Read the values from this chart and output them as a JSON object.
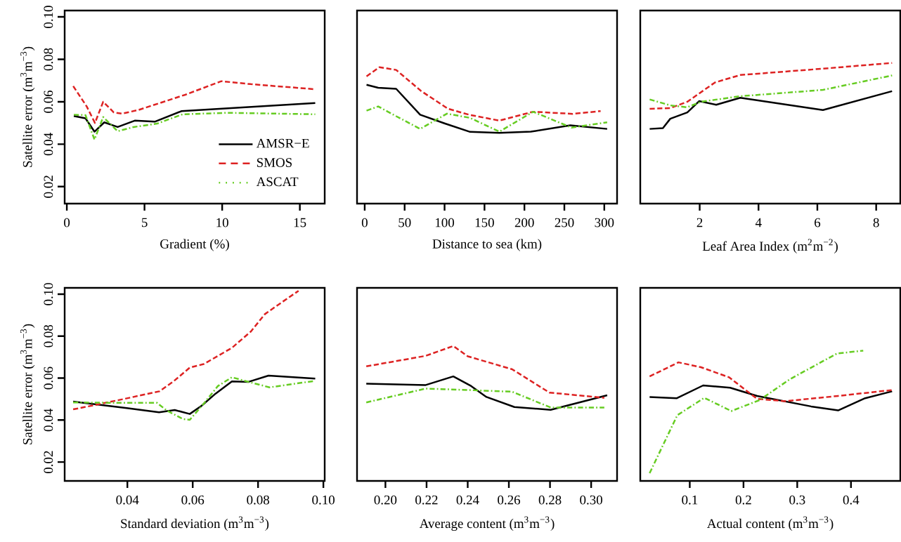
{
  "chart_data": [
    {
      "type": "line",
      "xlabel": "Gradient (%)",
      "ylabel": "Satellite error (m$^{3}$m$^{−3}$)",
      "xlim": [
        -0.14,
        16.6
      ],
      "ylim": [
        0.012,
        0.103
      ],
      "xticks": [
        0,
        5,
        10,
        15
      ],
      "yticks": [
        0.02,
        0.04,
        0.06,
        0.08,
        {
          "value": 0.1,
          "label": "0.10"
        }
      ],
      "legend": "bottom right",
      "series": [
        {
          "name": "AMSR−E",
          "color": "#000000",
          "line_style": "solid",
          "x": [
            0.45,
            1.2,
            1.78,
            2.41,
            3.27,
            4.37,
            5.66,
            7.39,
            15.99
          ],
          "values": [
            0.0533,
            0.0522,
            0.0459,
            0.0503,
            0.0481,
            0.0511,
            0.0506,
            0.0556,
            0.0594
          ]
        },
        {
          "name": "SMOS",
          "color": "#dd2222",
          "line_style": "dashed",
          "x": [
            0.41,
            1.28,
            1.81,
            2.34,
            3.02,
            3.54,
            4.6,
            7.62,
            9.95,
            11.84,
            15.99
          ],
          "values": [
            0.0674,
            0.0578,
            0.05,
            0.06,
            0.055,
            0.0544,
            0.0561,
            0.0633,
            0.0697,
            0.0683,
            0.0659
          ]
        },
        {
          "name": "ASCAT",
          "color": "#66cc22",
          "line_style": "dotted",
          "x": [
            0.45,
            1.2,
            1.78,
            2.34,
            3.27,
            4.3,
            5.81,
            7.45,
            10.31,
            15.99
          ],
          "values": [
            0.0539,
            0.0537,
            0.0422,
            0.0528,
            0.0461,
            0.0481,
            0.0497,
            0.0541,
            0.0548,
            0.0541
          ]
        }
      ]
    },
    {
      "type": "line",
      "xlabel": "Distance to sea (km)",
      "xlim": [
        -9.6,
        316
      ],
      "ylim": [
        0.012,
        0.103
      ],
      "xticks": [
        0,
        50,
        100,
        150,
        200,
        250,
        300
      ],
      "tick_labels": "x",
      "series": [
        {
          "color": "#000000",
          "line_style": "solid",
          "x": [
            2.3,
            16.9,
            39.4,
            69.4,
            100,
            132,
            168.6,
            208,
            257.5,
            303.6
          ],
          "values": [
            0.068,
            0.0666,
            0.0661,
            0.0539,
            0.0498,
            0.0458,
            0.0453,
            0.0459,
            0.0489,
            0.0472
          ]
        },
        {
          "color": "#dd2222",
          "line_style": "dashed",
          "x": [
            2.3,
            18.4,
            39.4,
            70.9,
            104.4,
            130.6,
            168.6,
            210.9,
            260.4,
            295.4
          ],
          "values": [
            0.072,
            0.0763,
            0.075,
            0.065,
            0.0567,
            0.0539,
            0.0511,
            0.0553,
            0.0543,
            0.0556
          ]
        },
        {
          "color": "#66cc22",
          "line_style": "dotted",
          "x": [
            2.3,
            16.9,
            35.9,
            69.4,
            103,
            132,
            168.6,
            210.9,
            259,
            303.6
          ],
          "values": [
            0.0558,
            0.0578,
            0.0539,
            0.0472,
            0.0544,
            0.0524,
            0.0459,
            0.0553,
            0.0478,
            0.0503
          ]
        }
      ]
    },
    {
      "type": "line",
      "xlabel": "Leaf Area Index (m$^{2}$m$^{−2}$)",
      "xlim": [
        -0.02,
        8.82
      ],
      "ylim": [
        0.012,
        0.103
      ],
      "xticks": [
        2,
        4,
        6,
        8
      ],
      "tick_labels": "x",
      "series": [
        {
          "color": "#000000",
          "line_style": "solid",
          "x": [
            0.3,
            0.75,
            1.0,
            1.58,
            1.98,
            2.56,
            3.38,
            6.19,
            8.54
          ],
          "values": [
            0.0472,
            0.0476,
            0.052,
            0.055,
            0.0603,
            0.0586,
            0.0619,
            0.0561,
            0.065
          ]
        },
        {
          "color": "#dd2222",
          "line_style": "dashed",
          "x": [
            0.3,
            1.0,
            1.58,
            1.98,
            2.52,
            3.38,
            6.19,
            8.54
          ],
          "values": [
            0.0567,
            0.057,
            0.06,
            0.0639,
            0.0691,
            0.0726,
            0.0756,
            0.0783
          ]
        },
        {
          "color": "#66cc22",
          "line_style": "dotted",
          "x": [
            0.3,
            1.0,
            1.58,
            2.04,
            3.38,
            6.19,
            8.54
          ],
          "values": [
            0.0611,
            0.0583,
            0.0574,
            0.06,
            0.0626,
            0.0656,
            0.0724
          ]
        }
      ]
    },
    {
      "type": "line",
      "xlabel": "Standard deviation (m$^{3}$m$^{−3}$)",
      "ylabel": "Satellite error (m$^{3}$m$^{−3}$)",
      "xlim": [
        0.0208,
        0.1004
      ],
      "ylim": [
        0.011,
        0.103
      ],
      "xticks": [
        0.04,
        0.06,
        0.08,
        {
          "value": 0.1,
          "label": "0.10"
        }
      ],
      "yticks": [
        0.02,
        0.04,
        0.06,
        0.08,
        {
          "value": 0.1,
          "label": "0.10"
        }
      ],
      "series": [
        {
          "color": "#000000",
          "line_style": "solid",
          "x": [
            0.0234,
            0.0398,
            0.0497,
            0.0545,
            0.0591,
            0.0627,
            0.067,
            0.072,
            0.0771,
            0.0832,
            0.0975
          ],
          "values": [
            0.0488,
            0.0457,
            0.0437,
            0.0448,
            0.0429,
            0.0468,
            0.0526,
            0.0584,
            0.0582,
            0.0612,
            0.0598
          ]
        },
        {
          "color": "#dd2222",
          "line_style": "dashed",
          "x": [
            0.0234,
            0.0305,
            0.0391,
            0.0498,
            0.0541,
            0.0591,
            0.0634,
            0.072,
            0.0778,
            0.0821,
            0.0892,
            0.0924
          ],
          "values": [
            0.0451,
            0.0473,
            0.0501,
            0.0537,
            0.0584,
            0.065,
            0.0667,
            0.0744,
            0.0822,
            0.0905,
            0.0982,
            0.1016
          ]
        },
        {
          "color": "#66cc22",
          "line_style": "dotted",
          "x": [
            0.0234,
            0.0376,
            0.0491,
            0.052,
            0.057,
            0.0591,
            0.0634,
            0.0677,
            0.072,
            0.0771,
            0.0835,
            0.0971
          ],
          "values": [
            0.0484,
            0.0482,
            0.0482,
            0.0446,
            0.0405,
            0.0401,
            0.0479,
            0.0562,
            0.0604,
            0.0582,
            0.0556,
            0.0586
          ]
        }
      ]
    },
    {
      "type": "line",
      "xlabel": "Average content (m$^{3}$m$^{−3}$)",
      "xlim": [
        0.1862,
        0.3126
      ],
      "ylim": [
        0.011,
        0.103
      ],
      "xticks": [
        {
          "value": 0.2,
          "label": "0.20"
        },
        0.22,
        0.24,
        0.26,
        0.28,
        {
          "value": 0.3,
          "label": "0.30"
        }
      ],
      "tick_labels": "x",
      "series": [
        {
          "color": "#000000",
          "line_style": "solid",
          "x": [
            0.1907,
            0.2196,
            0.233,
            0.2417,
            0.2491,
            0.2627,
            0.2803,
            0.3078
          ],
          "values": [
            0.0573,
            0.0567,
            0.0608,
            0.0562,
            0.051,
            0.0462,
            0.0449,
            0.0518
          ]
        },
        {
          "color": "#dd2222",
          "line_style": "dashed",
          "x": [
            0.1907,
            0.2196,
            0.233,
            0.24,
            0.2616,
            0.2797,
            0.3064
          ],
          "values": [
            0.0656,
            0.0706,
            0.0753,
            0.0704,
            0.0642,
            0.0531,
            0.0506
          ]
        },
        {
          "color": "#66cc22",
          "line_style": "dotted",
          "x": [
            0.1907,
            0.2196,
            0.2434,
            0.2616,
            0.2803,
            0.3064
          ],
          "values": [
            0.0484,
            0.055,
            0.0542,
            0.0535,
            0.046,
            0.046
          ]
        }
      ]
    },
    {
      "type": "line",
      "xlabel": "Actual content (m$^{3}$m$^{−3}$)",
      "xlim": [
        0.0079,
        0.4918
      ],
      "ylim": [
        0.011,
        0.103
      ],
      "xticks": [
        0.1,
        0.2,
        0.3,
        0.4
      ],
      "tick_labels": "x",
      "series": [
        {
          "color": "#000000",
          "line_style": "solid",
          "x": [
            0.0253,
            0.076,
            0.1249,
            0.1751,
            0.2254,
            0.3258,
            0.3761,
            0.4263,
            0.4765
          ],
          "values": [
            0.051,
            0.0504,
            0.0565,
            0.0554,
            0.0515,
            0.0465,
            0.0446,
            0.0504,
            0.0537
          ]
        },
        {
          "color": "#dd2222",
          "line_style": "dashed",
          "x": [
            0.0253,
            0.079,
            0.1206,
            0.173,
            0.2254,
            0.2778,
            0.3761,
            0.4765
          ],
          "values": [
            0.0608,
            0.0675,
            0.0652,
            0.0604,
            0.0501,
            0.049,
            0.0515,
            0.0543
          ]
        },
        {
          "color": "#66cc22",
          "line_style": "dotted",
          "x": [
            0.0253,
            0.0768,
            0.1271,
            0.1773,
            0.2298,
            0.2865,
            0.3739,
            0.4228
          ],
          "values": [
            0.0147,
            0.0423,
            0.0506,
            0.0443,
            0.0495,
            0.0595,
            0.0717,
            0.0731
          ]
        }
      ]
    }
  ]
}
